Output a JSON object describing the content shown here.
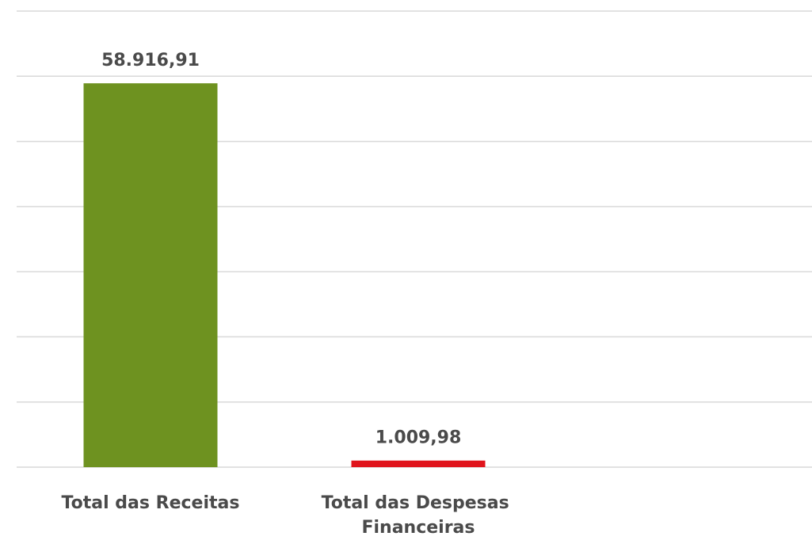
{
  "chart_data": {
    "type": "bar",
    "categories": [
      "Total das Receitas",
      "Total das Despesas Financeiras"
    ],
    "series": [
      {
        "values": [
          58916.91,
          1009.98
        ],
        "value_labels": [
          "58.916,91",
          "1.009,98"
        ],
        "colors": [
          "#6e9220",
          "#e0141c"
        ]
      }
    ],
    "ylim": [
      0,
      70000
    ],
    "yticks": [
      0,
      10000,
      20000,
      30000,
      40000,
      50000,
      60000,
      70000
    ],
    "grid": true
  }
}
